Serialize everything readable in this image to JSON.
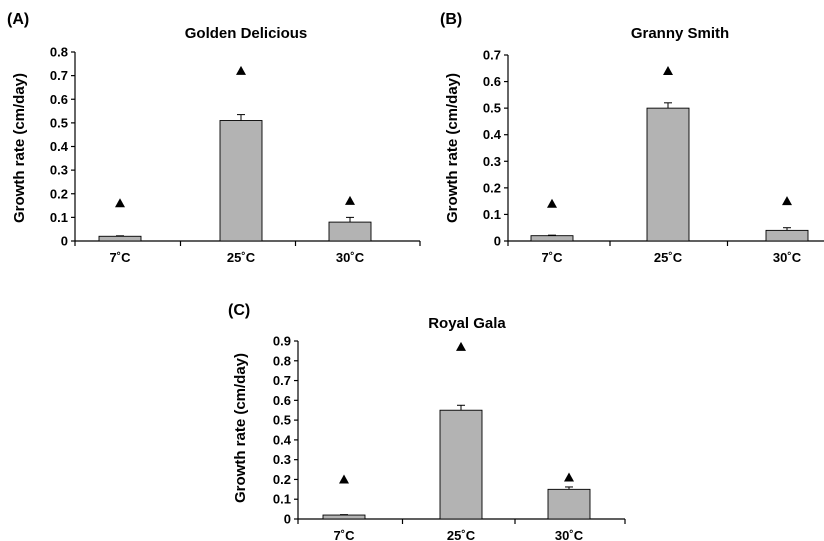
{
  "chart_data": [
    {
      "type": "bar",
      "panel": "(A)",
      "title": "Golden Delicious",
      "ylabel": "Growth rate (cm/day)",
      "xlabel": "",
      "categories": [
        "7˚C",
        "25˚C",
        "30˚C"
      ],
      "values": [
        0.02,
        0.51,
        0.08
      ],
      "errors": [
        0.002,
        0.025,
        0.02
      ],
      "markers": [
        0.16,
        0.72,
        0.17
      ],
      "marker_symbol": "▲",
      "ylim": [
        0,
        0.8
      ],
      "yticks": [
        0,
        0.1,
        0.2,
        0.3,
        0.4,
        0.5,
        0.6,
        0.7,
        0.8
      ],
      "ytick_labels": [
        "0",
        "0.1",
        "0.2",
        "0.3",
        "0.4",
        "0.5",
        "0.6",
        "0.7",
        "0.8"
      ],
      "bar_color": "#b3b3b3",
      "grid": false
    },
    {
      "type": "bar",
      "panel": "(B)",
      "title": "Granny Smith",
      "ylabel": "Growth rate (cm/day)",
      "xlabel": "",
      "categories": [
        "7˚C",
        "25˚C",
        "30˚C"
      ],
      "values": [
        0.02,
        0.5,
        0.04
      ],
      "errors": [
        0.002,
        0.02,
        0.01
      ],
      "markers": [
        0.14,
        0.64,
        0.15
      ],
      "marker_symbol": "▲",
      "ylim": [
        0,
        0.7
      ],
      "yticks": [
        0,
        0.1,
        0.2,
        0.3,
        0.4,
        0.5,
        0.6,
        0.7
      ],
      "ytick_labels": [
        "0",
        "0.1",
        "0.2",
        "0.3",
        "0.4",
        "0.5",
        "0.6",
        "0.7"
      ],
      "bar_color": "#b3b3b3",
      "grid": false
    },
    {
      "type": "bar",
      "panel": "(C)",
      "title": "Royal Gala",
      "ylabel": "Growth rate (cm/day)",
      "xlabel": "",
      "categories": [
        "7˚C",
        "25˚C",
        "30˚C"
      ],
      "values": [
        0.02,
        0.55,
        0.15
      ],
      "errors": [
        0.002,
        0.025,
        0.012
      ],
      "markers": [
        0.2,
        0.87,
        0.21
      ],
      "marker_symbol": "▲",
      "ylim": [
        0,
        0.9
      ],
      "yticks": [
        0,
        0.1,
        0.2,
        0.3,
        0.4,
        0.5,
        0.6,
        0.7,
        0.8,
        0.9
      ],
      "ytick_labels": [
        "0",
        "0.1",
        "0.2",
        "0.3",
        "0.4",
        "0.5",
        "0.6",
        "0.7",
        "0.8",
        "0.9"
      ],
      "bar_color": "#b3b3b3",
      "grid": false
    }
  ]
}
